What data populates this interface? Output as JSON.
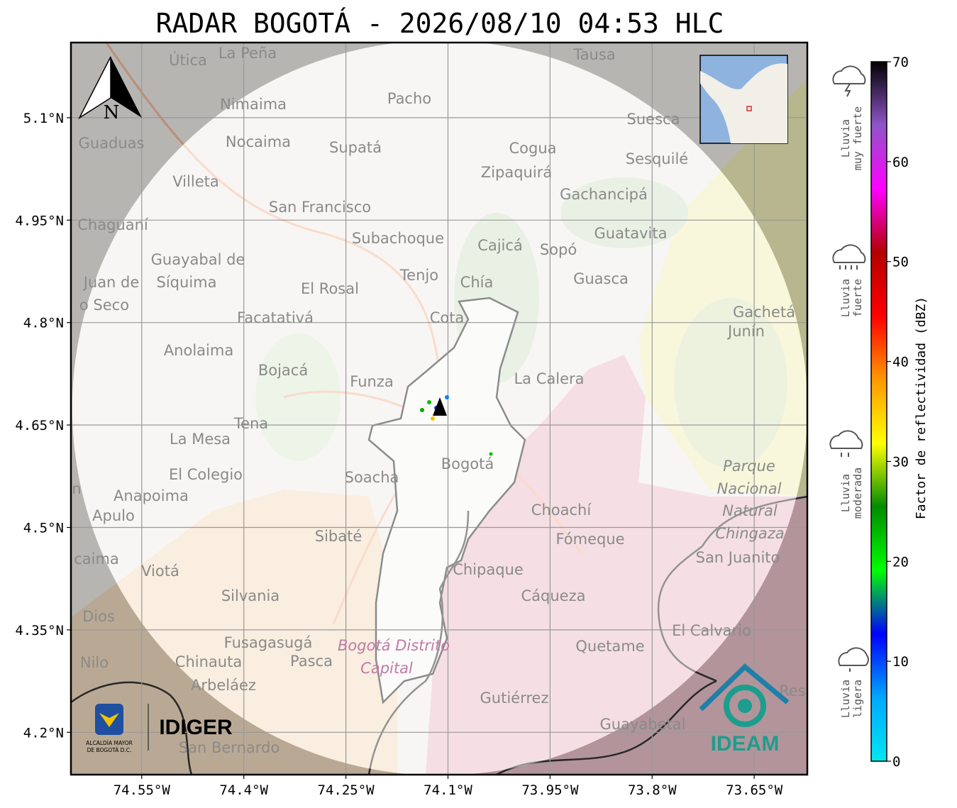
{
  "title": "RADAR BOGOTÁ - 2026/08/10 04:53 HLC",
  "axes": {
    "xlim": [
      -74.654,
      -73.572
    ],
    "ylim": [
      4.138,
      5.21
    ],
    "xticks": [
      {
        "value": -74.55,
        "label": "74.55°W"
      },
      {
        "value": -74.4,
        "label": "74.4°W"
      },
      {
        "value": -74.25,
        "label": "74.25°W"
      },
      {
        "value": -74.1,
        "label": "74.1°W"
      },
      {
        "value": -73.95,
        "label": "73.95°W"
      },
      {
        "value": -73.8,
        "label": "73.8°W"
      },
      {
        "value": -73.65,
        "label": "73.65°W"
      }
    ],
    "yticks": [
      {
        "value": 4.2,
        "label": "4.2°N"
      },
      {
        "value": 4.35,
        "label": "4.35°N"
      },
      {
        "value": 4.5,
        "label": "4.5°N"
      },
      {
        "value": 4.65,
        "label": "4.65°N"
      },
      {
        "value": 4.8,
        "label": "4.8°N"
      },
      {
        "value": 4.95,
        "label": "4.95°N"
      },
      {
        "value": 5.1,
        "label": "5.1°N"
      }
    ],
    "grid": true
  },
  "colorbar": {
    "label": "Factor de reflectividad (dBZ)",
    "lim": [
      0,
      70
    ],
    "ticks": [
      0,
      10,
      20,
      30,
      40,
      50,
      60,
      70
    ],
    "colors": [
      "#00e8f0",
      "#00a8ff",
      "#0000ff",
      "#00ff00",
      "#008c00",
      "#ffff00",
      "#ff9900",
      "#ff0000",
      "#b40000",
      "#ff00ff",
      "#9055c8",
      "#000000"
    ]
  },
  "legend": [
    [
      "Lluvia",
      "muy fuerte"
    ],
    [
      "Lluvia",
      "fuerte"
    ],
    [
      "Lluvia",
      "moderada"
    ],
    [
      "Lluvia",
      "ligera"
    ]
  ],
  "north": "N",
  "logos": {
    "alcaldia": [
      "ALCALDÍA MAYOR",
      "DE BOGOTÁ D.C."
    ],
    "idiger": "IDIGER",
    "ideam": "IDEAM"
  },
  "places": [
    "La Peña",
    "Útica",
    "Tausa",
    "Pacho",
    "Nimaima",
    "Guaduas",
    "Nocaima",
    "Supatá",
    "Cogua",
    "Suesca",
    "Sesquilé",
    "Zipaquirá",
    "Villeta",
    "Gachancipá",
    "San Francisco",
    "Chaguaní",
    "Guatavita",
    "Subachoque",
    "Cajicá",
    "Sopó",
    "Guayabal de",
    "Síquima",
    "Juan de",
    "o Seco",
    "Tenjo",
    "Chía",
    "Guasca",
    "El Rosal",
    "Facatativá",
    "Cota",
    "Gachetá",
    "Junín",
    "Anolaima",
    "Bojacá",
    "Funza",
    "La Calera",
    "Tena",
    "La Mesa",
    "Bogotá",
    "Parque",
    "Nacional",
    "Natural",
    "Chingaza",
    "El Colegio",
    "Soacha",
    "Anapoima",
    "n",
    "Apulo",
    "Choachí",
    "Sibaté",
    "Fómeque",
    "San Juanito",
    "caima",
    "Viotá",
    "Chipaque",
    "Silvania",
    "Cáqueza",
    "Dios",
    "El Calvario",
    "Fusagasugá",
    "Bogotá Distrito",
    "Capital",
    "Quetame",
    "Nilo",
    "Chinauta",
    "Pasca",
    "Arbeláez",
    "Gutiérrez",
    "Res",
    "Guayabetal",
    "San Bernardo"
  ]
}
